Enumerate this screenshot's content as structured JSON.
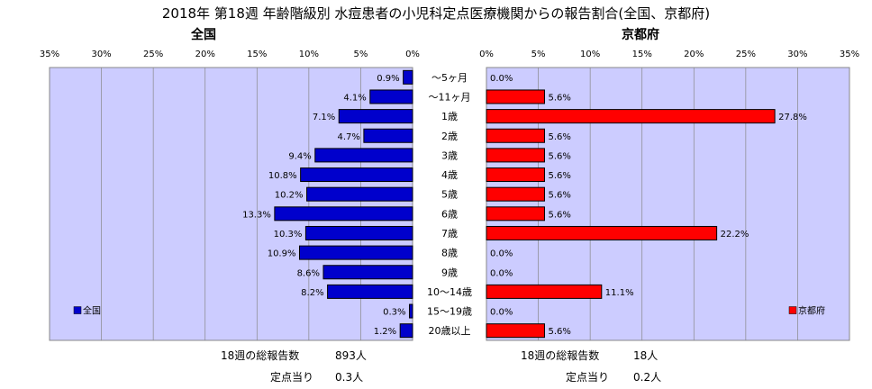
{
  "title": "2018年 第18週 年齢階級別 水痘患者の小児科定点医療機関からの報告割合(全国、京都府)",
  "chart_data": [
    {
      "type": "bar",
      "orientation": "horizontal",
      "title": "全国",
      "categories": [
        "～5ヶ月",
        "～11ヶ月",
        "1歳",
        "2歳",
        "3歳",
        "4歳",
        "5歳",
        "6歳",
        "7歳",
        "8歳",
        "9歳",
        "10～14歳",
        "15～19歳",
        "20歳以上"
      ],
      "series": [
        {
          "name": "全国",
          "color": "#0000cc",
          "values": [
            0.9,
            4.1,
            7.1,
            4.7,
            9.4,
            10.8,
            10.2,
            13.3,
            10.3,
            10.9,
            8.6,
            8.2,
            0.3,
            1.2
          ],
          "labels": [
            "0.9%",
            "4.1%",
            "7.1%",
            "4.7%",
            "9.4%",
            "10.8%",
            "10.2%",
            "13.3%",
            "10.3%",
            "10.9%",
            "8.6%",
            "8.2%",
            "0.3%",
            "1.2%"
          ]
        }
      ],
      "xlim": [
        0,
        35
      ],
      "xticks": [
        "35%",
        "30%",
        "25%",
        "20%",
        "15%",
        "10%",
        "5%",
        "0%"
      ],
      "x_reversed": true,
      "legend": "bottom-left",
      "grid": true,
      "plot_bg": "#ccccff"
    },
    {
      "type": "bar",
      "orientation": "horizontal",
      "title": "京都府",
      "categories": [
        "～5ヶ月",
        "～11ヶ月",
        "1歳",
        "2歳",
        "3歳",
        "4歳",
        "5歳",
        "6歳",
        "7歳",
        "8歳",
        "9歳",
        "10～14歳",
        "15～19歳",
        "20歳以上"
      ],
      "series": [
        {
          "name": "京都府",
          "color": "#ff0000",
          "values": [
            0.0,
            5.6,
            27.8,
            5.6,
            5.6,
            5.6,
            5.6,
            5.6,
            22.2,
            0.0,
            0.0,
            11.1,
            0.0,
            5.6
          ],
          "labels": [
            "0.0%",
            "5.6%",
            "27.8%",
            "5.6%",
            "5.6%",
            "5.6%",
            "5.6%",
            "5.6%",
            "22.2%",
            "0.0%",
            "0.0%",
            "11.1%",
            "0.0%",
            "5.6%"
          ]
        }
      ],
      "xlim": [
        0,
        35
      ],
      "xticks": [
        "0%",
        "5%",
        "10%",
        "15%",
        "20%",
        "25%",
        "30%",
        "35%"
      ],
      "legend": "bottom-right",
      "grid": true,
      "plot_bg": "#ccccff"
    }
  ],
  "footer": {
    "left_total_label": "18週の総報告数",
    "left_total_value": "893人",
    "left_per_label": "定点当り",
    "left_per_value": "0.3人",
    "right_total_label": "18週の総報告数",
    "right_total_value": "18人",
    "right_per_label": "定点当り",
    "right_per_value": "0.2人"
  }
}
